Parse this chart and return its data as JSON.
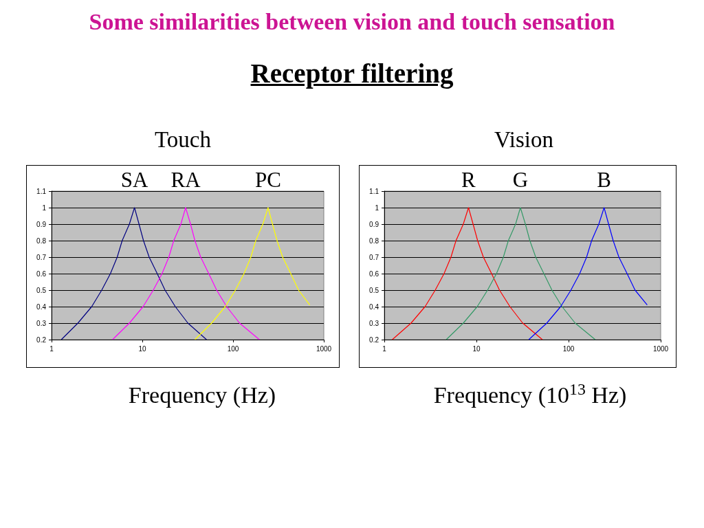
{
  "chart_data": [
    {
      "type": "other",
      "title": "Some similarities between vision and touch sensation",
      "subtitle": "Receptor filtering"
    },
    {
      "type": "line",
      "title": "Touch",
      "xlabel": "Frequency (Hz)",
      "log": "x",
      "grid": "y",
      "marker": "none",
      "xlim": [
        1,
        1000
      ],
      "xticks": [
        1,
        10,
        100,
        1000
      ],
      "ylim": [
        0.2,
        1.1
      ],
      "yticks": [
        0.2,
        0.3,
        0.4,
        0.5,
        0.6,
        0.7,
        0.8,
        0.9,
        1,
        1.1
      ],
      "series": [
        {
          "name": "SA",
          "color": "#000080",
          "x": [
            1.28,
            1.95,
            2.77,
            3.57,
            4.45,
            5.29,
            6.0,
            7.2,
            8.2,
            9.2,
            10.3,
            11.9,
            14.6,
            17.8,
            23.1,
            31.8,
            51
          ],
          "values": [
            0.2,
            0.3,
            0.4,
            0.5,
            0.6,
            0.7,
            0.8,
            0.9,
            1,
            0.9,
            0.8,
            0.7,
            0.6,
            0.5,
            0.4,
            0.3,
            0.2
          ]
        },
        {
          "name": "RA",
          "color": "#ff00ff",
          "x": [
            4.7,
            7.2,
            10.2,
            13.2,
            16.5,
            19.6,
            22.2,
            26.6,
            30,
            34,
            38,
            44,
            54,
            66,
            85,
            118,
            195
          ],
          "values": [
            0.2,
            0.3,
            0.4,
            0.5,
            0.6,
            0.7,
            0.8,
            0.9,
            1,
            0.9,
            0.8,
            0.7,
            0.6,
            0.5,
            0.4,
            0.3,
            0.2
          ]
        },
        {
          "name": "PC",
          "color": "#ffff00",
          "x": [
            38,
            58,
            82,
            106,
            132,
            157,
            178,
            213,
            243,
            272,
            305,
            352,
            432,
            527,
            700
          ],
          "values": [
            0.2,
            0.3,
            0.4,
            0.5,
            0.6,
            0.7,
            0.8,
            0.9,
            1,
            0.9,
            0.8,
            0.7,
            0.6,
            0.5,
            0.41
          ]
        }
      ]
    },
    {
      "type": "line",
      "title": "Vision",
      "xlabel": "Frequency (10$^{13}$ Hz)",
      "log": "x",
      "grid": "y",
      "marker": "none",
      "xlim": [
        1,
        1000
      ],
      "xticks": [
        1,
        10,
        100,
        1000
      ],
      "ylim": [
        0.2,
        1.1
      ],
      "yticks": [
        0.2,
        0.3,
        0.4,
        0.5,
        0.6,
        0.7,
        0.8,
        0.9,
        1,
        1.1
      ],
      "series": [
        {
          "name": "R",
          "color": "#ff0000",
          "x": [
            1.22,
            1.95,
            2.77,
            3.57,
            4.45,
            5.29,
            6.0,
            7.2,
            8.2,
            9.2,
            10.3,
            11.9,
            14.6,
            17.8,
            23.1,
            31.8,
            52
          ],
          "values": [
            0.2,
            0.3,
            0.4,
            0.5,
            0.6,
            0.7,
            0.8,
            0.9,
            1,
            0.9,
            0.8,
            0.7,
            0.6,
            0.5,
            0.4,
            0.3,
            0.2
          ]
        },
        {
          "name": "G",
          "color": "#339966",
          "x": [
            4.7,
            7.2,
            10.2,
            13.2,
            16.5,
            19.6,
            22.2,
            26.6,
            30,
            34,
            38,
            44,
            54,
            66,
            85,
            118,
            195
          ],
          "values": [
            0.2,
            0.3,
            0.4,
            0.5,
            0.6,
            0.7,
            0.8,
            0.9,
            1,
            0.9,
            0.8,
            0.7,
            0.6,
            0.5,
            0.4,
            0.3,
            0.2
          ]
        },
        {
          "name": "B",
          "color": "#0000ff",
          "x": [
            37,
            58,
            82,
            106,
            132,
            157,
            178,
            213,
            243,
            272,
            305,
            352,
            432,
            527,
            714
          ],
          "values": [
            0.2,
            0.3,
            0.4,
            0.5,
            0.6,
            0.7,
            0.8,
            0.9,
            1,
            0.9,
            0.8,
            0.7,
            0.6,
            0.5,
            0.41
          ]
        }
      ]
    }
  ]
}
